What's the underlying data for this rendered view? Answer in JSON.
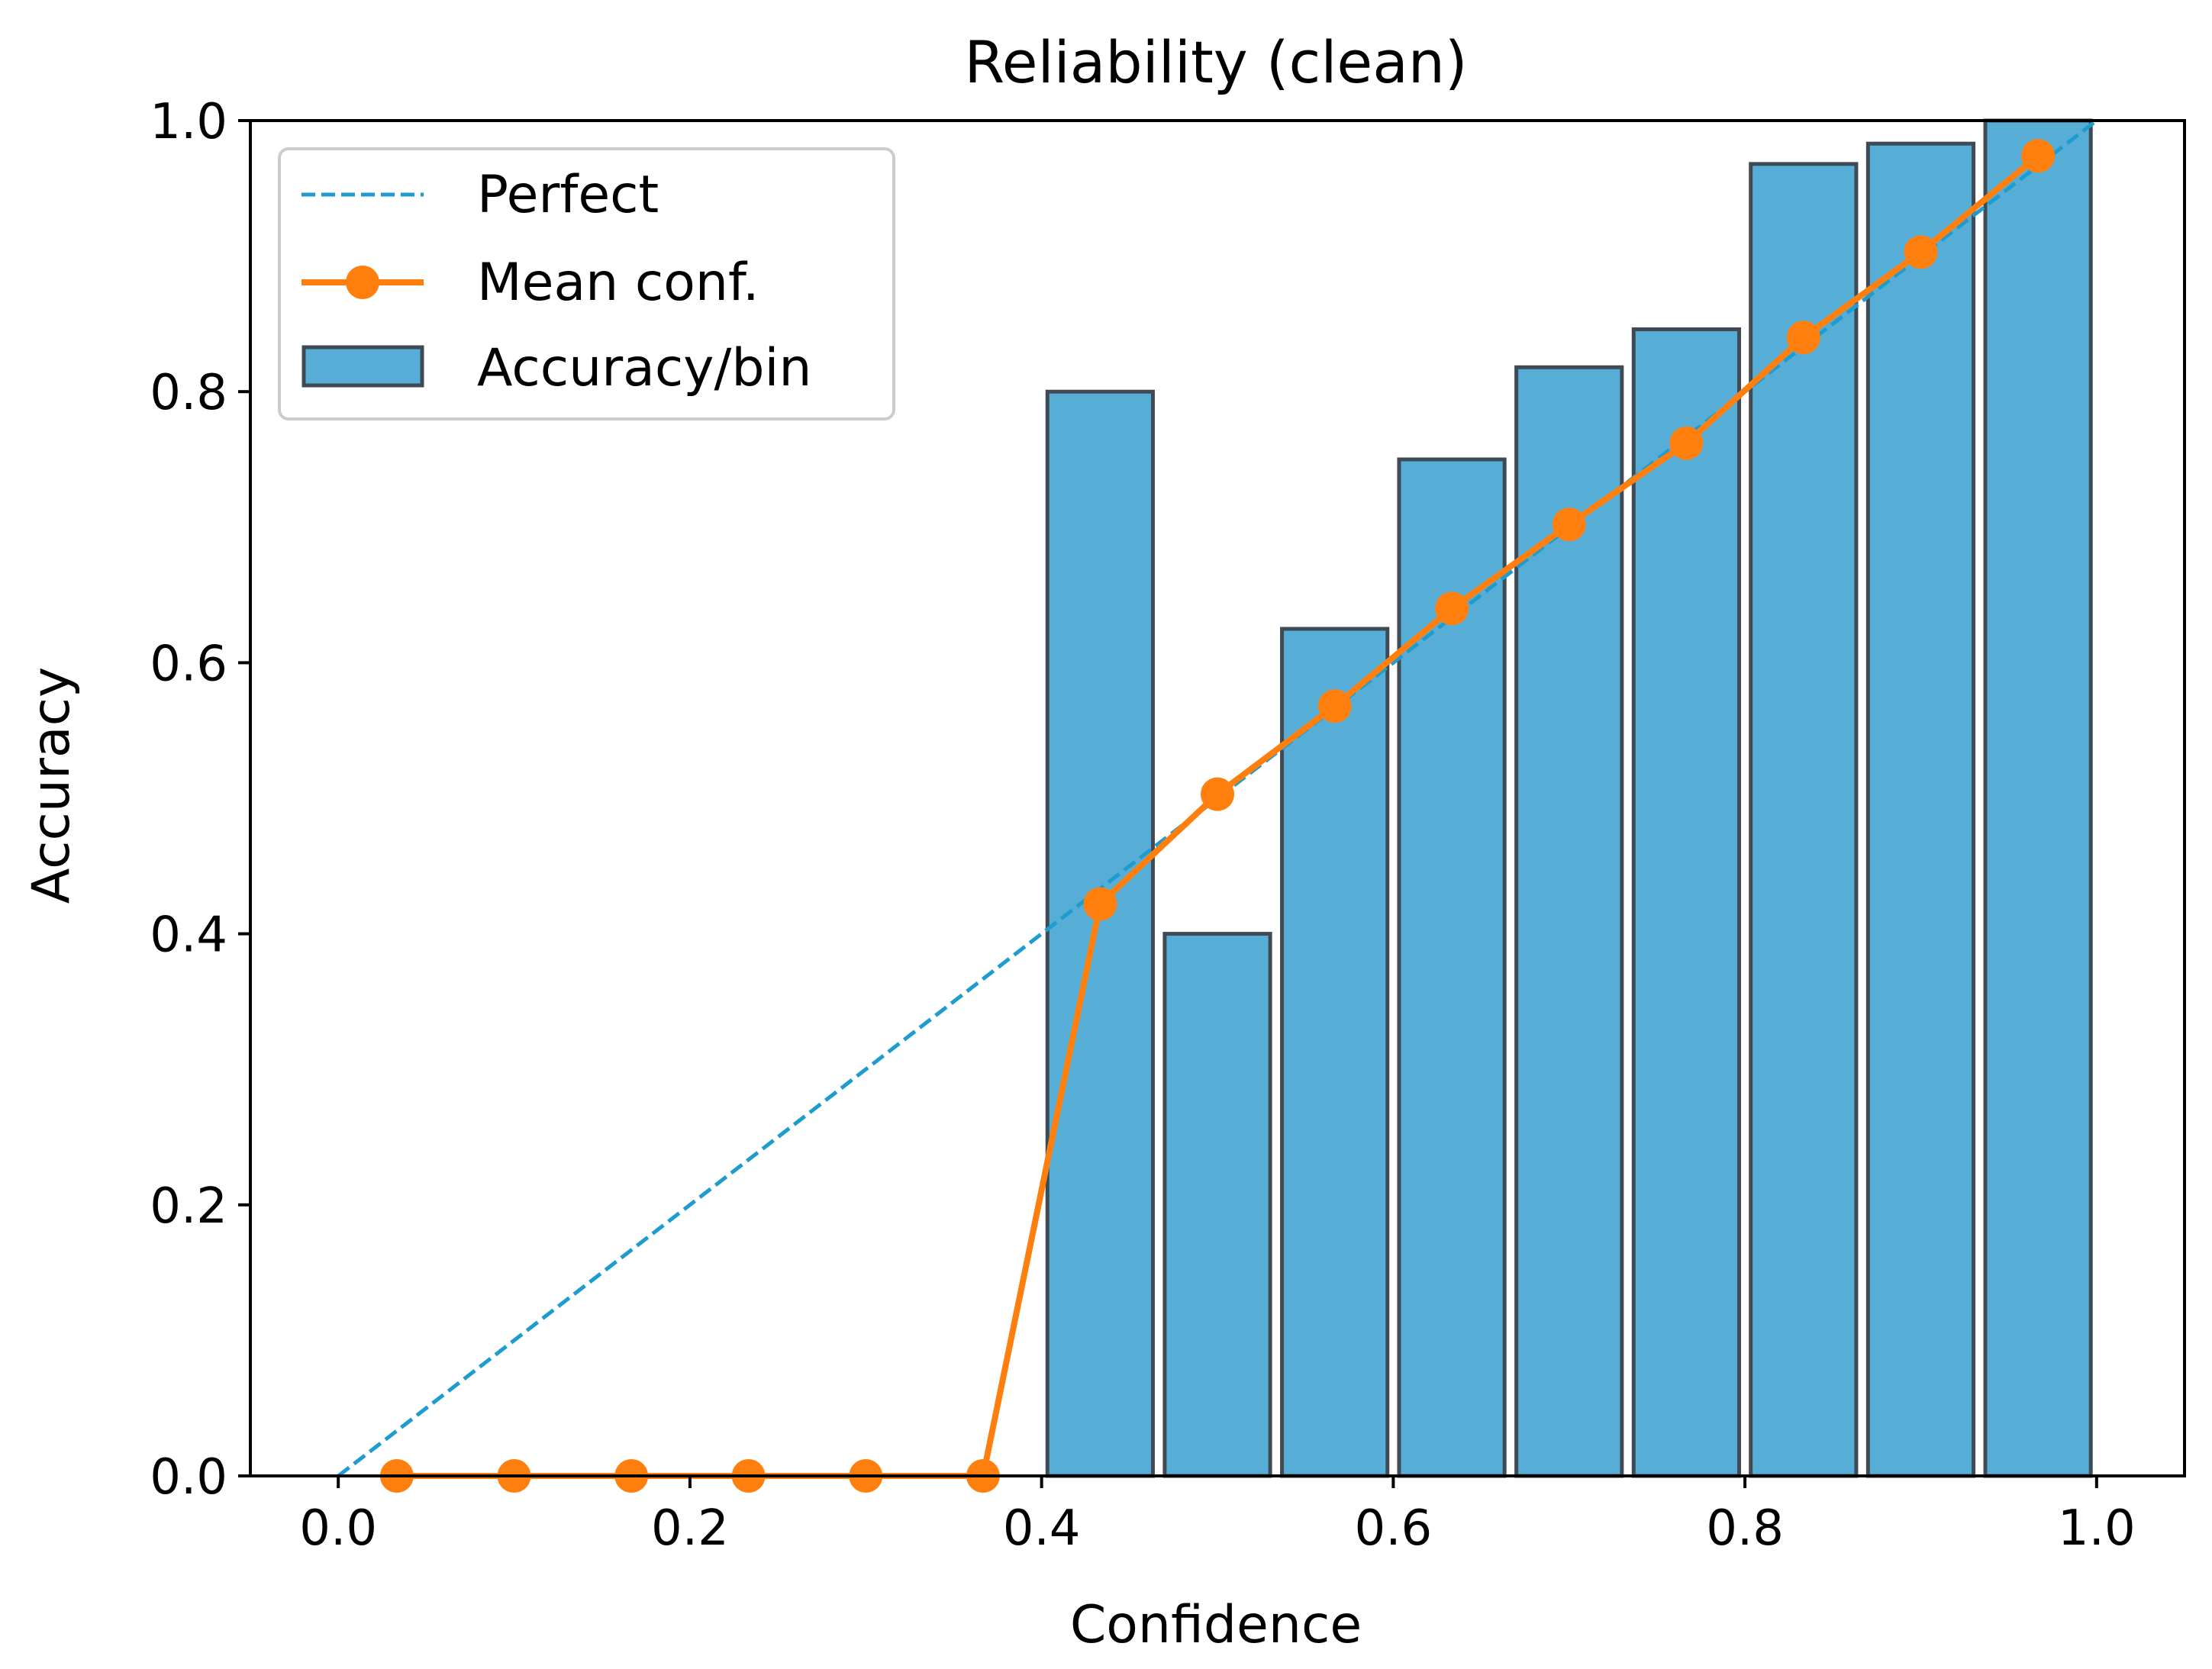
{
  "chart_data": {
    "type": "bar",
    "title": "Reliability (clean)",
    "xlabel": "Confidence",
    "ylabel": "Accuracy",
    "xlim": [
      -0.05,
      1.05
    ],
    "ylim": [
      0.0,
      1.0
    ],
    "xticks": [
      0.0,
      0.2,
      0.4,
      0.6,
      0.8,
      1.0
    ],
    "xtick_labels": [
      "0.0",
      "0.2",
      "0.4",
      "0.6",
      "0.8",
      "1.0"
    ],
    "yticks": [
      0.0,
      0.2,
      0.4,
      0.6,
      0.8,
      1.0
    ],
    "ytick_labels": [
      "0.0",
      "0.2",
      "0.4",
      "0.6",
      "0.8",
      "1.0"
    ],
    "grid": false,
    "legend_position": "top-left",
    "bins": {
      "centers": [
        0.0333,
        0.1,
        0.1667,
        0.2333,
        0.3,
        0.3667,
        0.4333,
        0.5,
        0.5667,
        0.6333,
        0.7,
        0.7667,
        0.8333,
        0.9,
        0.9667
      ],
      "width": 0.06
    },
    "series": [
      {
        "name": "Perfect",
        "kind": "line",
        "style": "dashed",
        "color": "#1f9ccf",
        "x": [
          0.0,
          1.0
        ],
        "y": [
          0.0,
          1.0
        ]
      },
      {
        "name": "Mean conf.",
        "kind": "line-markers",
        "color": "#ff7f0e",
        "x": [
          0.0333,
          0.1,
          0.1667,
          0.2333,
          0.3,
          0.3667,
          0.4333,
          0.5,
          0.5667,
          0.6333,
          0.7,
          0.7667,
          0.8333,
          0.9,
          0.9667
        ],
        "y": [
          0.0,
          0.0,
          0.0,
          0.0,
          0.0,
          0.0,
          0.422,
          0.503,
          0.568,
          0.64,
          0.702,
          0.762,
          0.84,
          0.903,
          0.974
        ]
      },
      {
        "name": "Accuracy/bin",
        "kind": "bar",
        "color": "#56aed6",
        "edgecolor": "#3f4a55",
        "x": [
          0.0333,
          0.1,
          0.1667,
          0.2333,
          0.3,
          0.3667,
          0.4333,
          0.5,
          0.5667,
          0.6333,
          0.7,
          0.7667,
          0.8333,
          0.9,
          0.9667
        ],
        "values": [
          0.0,
          0.0,
          0.0,
          0.0,
          0.0,
          0.0,
          0.8,
          0.4,
          0.625,
          0.75,
          0.818,
          0.846,
          0.968,
          0.983,
          1.0
        ]
      }
    ],
    "legend": [
      "Perfect",
      "Mean conf.",
      "Accuracy/bin"
    ]
  }
}
